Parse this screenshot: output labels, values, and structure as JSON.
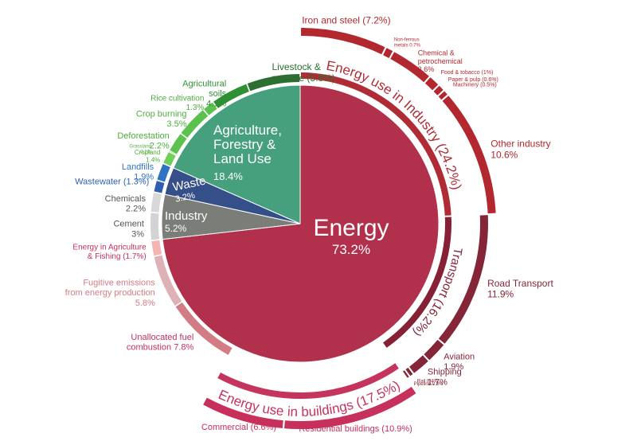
{
  "chart_data": {
    "type": "pie",
    "title": "",
    "sectors": [
      {
        "name": "Energy",
        "value": 73.2,
        "label": "73.2%",
        "color": "#b1304c"
      },
      {
        "name": "Industry",
        "value": 5.2,
        "label": "5.2%",
        "color": "#7a7d78"
      },
      {
        "name": "Waste",
        "value": 3.2,
        "label": "3.2%",
        "color": "#354f88"
      },
      {
        "name": "Agriculture, Forestry & Land Use",
        "value": 18.4,
        "label": "18.4%",
        "color": "#46a07d"
      }
    ],
    "groups": [
      {
        "name": "Energy use in Industry",
        "value": 24.2,
        "label": "(24.2%)",
        "color": "#b02c35"
      },
      {
        "name": "Transport",
        "value": 16.2,
        "label": "(16.2%)",
        "color": "#862135"
      },
      {
        "name": "Energy use in buildings",
        "value": 17.5,
        "label": "(17.5%)",
        "color": "#c5345c"
      }
    ],
    "subsectors": [
      {
        "name": "Iron and steel",
        "value": 7.2,
        "label": "(7.2%)",
        "color": "#b3282f"
      },
      {
        "name": "Non-ferrous metals",
        "value": 0.7,
        "label": "0.7%",
        "color": "#b3282f"
      },
      {
        "name": "Chemical & petrochemical",
        "value": 3.6,
        "label": "3.6%",
        "color": "#b3282f"
      },
      {
        "name": "Food & tobacco",
        "value": 1.0,
        "label": "(1%)",
        "color": "#b3282f"
      },
      {
        "name": "Paper & pulp",
        "value": 0.6,
        "label": "(0.6%)",
        "color": "#b3282f"
      },
      {
        "name": "Machinery",
        "value": 0.5,
        "label": "(0.5%)",
        "color": "#b3282f"
      },
      {
        "name": "Other industry",
        "value": 10.6,
        "label": "10.6%",
        "color": "#b3282f"
      },
      {
        "name": "Road Transport",
        "value": 11.9,
        "label": "11.9%",
        "color": "#842638"
      },
      {
        "name": "Aviation",
        "value": 1.9,
        "label": "1.9%",
        "color": "#842638"
      },
      {
        "name": "Shipping",
        "value": 1.7,
        "label": "1.7%",
        "color": "#842638"
      },
      {
        "name": "Rail",
        "value": 0.4,
        "label": "0.4%",
        "color": "#842638"
      },
      {
        "name": "Pipeline",
        "value": 0.3,
        "label": "0.3%",
        "color": "#842638"
      },
      {
        "name": "Residential buildings",
        "value": 10.9,
        "label": "(10.9%)",
        "color": "#c7305b"
      },
      {
        "name": "Commercial",
        "value": 6.6,
        "label": "(6.6%)",
        "color": "#c7305b"
      },
      {
        "name": "Unallocated fuel combustion",
        "value": 7.8,
        "label": "7.8%",
        "color": "#d27c86"
      },
      {
        "name": "Fugitive emissions from energy production",
        "value": 5.8,
        "label": "5.8%",
        "color": "#ddb1b5"
      },
      {
        "name": "Energy in Agriculture & Fishing",
        "value": 1.7,
        "label": "(1.7%)",
        "color": "#f3b4b4"
      },
      {
        "name": "Cement",
        "value": 3.0,
        "label": "3%",
        "color": "#d2d3d2"
      },
      {
        "name": "Chemicals",
        "value": 2.2,
        "label": "2.2%",
        "color": "#d7d8d7"
      },
      {
        "name": "Wastewater",
        "value": 1.3,
        "label": "(1.3%)",
        "color": "#2f5fb3"
      },
      {
        "name": "Landfills",
        "value": 1.9,
        "label": "1.9%",
        "color": "#2f74c4"
      },
      {
        "name": "Cropland",
        "value": 1.4,
        "label": "1.4%",
        "color": "#6fcf57"
      },
      {
        "name": "Grassland",
        "value": 0.1,
        "label": "0.1%",
        "color": "#6fcf57"
      },
      {
        "name": "Deforestation",
        "value": 2.2,
        "label": "2.2%",
        "color": "#5bc24d"
      },
      {
        "name": "Crop burning",
        "value": 3.5,
        "label": "3.5%",
        "color": "#5bc24d"
      },
      {
        "name": "Rice cultivation",
        "value": 1.3,
        "label": "1.3%",
        "color": "#5bc24d"
      },
      {
        "name": "Agricultural soils",
        "value": 4.1,
        "label": "4.1%",
        "color": "#2f8f35"
      },
      {
        "name": "Livestock & manure",
        "value": 5.8,
        "label": "(5.8%)",
        "color": "#2d6f30"
      }
    ]
  }
}
